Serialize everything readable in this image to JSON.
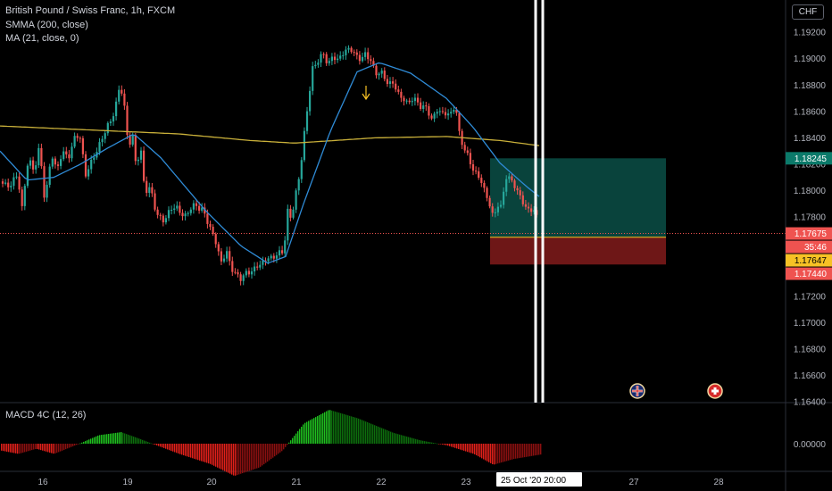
{
  "header": {
    "symbol_line": "British Pound / Swiss Franc, 1h, FXCM",
    "smma_label": "SMMA (200, close)",
    "ma_label": "MA (21, close, 0)",
    "currency": "CHF"
  },
  "macd_label": "MACD 4C (12, 26)",
  "colors": {
    "up": "#26a69a",
    "down": "#ef5350",
    "smma": "#c9b03a",
    "ma": "#2f8bd6",
    "target_zone": "#0b4f47",
    "stop_zone": "#7a1a1a",
    "macd_pos_strong": "#1fbf1f",
    "macd_pos_weak": "#0d6e0d",
    "macd_neg_strong": "#e0201a",
    "macd_neg_weak": "#8a1010"
  },
  "price_tags": [
    {
      "text": "1.18245",
      "bg": "#0b7a6a",
      "fg": "#ffffff"
    },
    {
      "text": "1.17675",
      "bg": "#ef5350",
      "fg": "#ffffff"
    },
    {
      "text": "35:46",
      "bg": "#ef5350",
      "fg": "#ffffff"
    },
    {
      "text": "1.17647",
      "bg": "#f7c125",
      "fg": "#000000"
    },
    {
      "text": "1.17440",
      "bg": "#ef5350",
      "fg": "#ffffff"
    }
  ],
  "macd_axis_label": "0.00000",
  "x_labels": [
    "16",
    "19",
    "20",
    "21",
    "22",
    "23",
    "27",
    "28"
  ],
  "time_tooltip": "25 Oct '20   20:00",
  "event_icons": [
    "flag-gb-icon",
    "flag-ch-icon"
  ],
  "chart_data": {
    "type": "candlestick",
    "title": "British Pound / Swiss Franc, 1h, FXCM",
    "y_ticks": [
      "1.19200",
      "1.19000",
      "1.18800",
      "1.18600",
      "1.18400",
      "1.18200",
      "1.18000",
      "1.17800",
      "1.17200",
      "1.17000",
      "1.16800",
      "1.16600",
      "1.16400"
    ],
    "ylim": [
      1.164,
      1.1935
    ],
    "x_ticks": [
      "16",
      "19",
      "20",
      "21",
      "22",
      "23",
      "27",
      "28"
    ],
    "last_price": 1.17675,
    "trade": {
      "target": 1.18245,
      "entry": 1.17647,
      "stop": 1.1744
    },
    "candle_control_points": [
      [
        0,
        1.1807
      ],
      [
        10,
        1.1803
      ],
      [
        20,
        1.1812
      ],
      [
        25,
        1.1785
      ],
      [
        32,
        1.1828
      ],
      [
        38,
        1.1812
      ],
      [
        44,
        1.1835
      ],
      [
        50,
        1.1792
      ],
      [
        58,
        1.1828
      ],
      [
        64,
        1.1814
      ],
      [
        70,
        1.1832
      ],
      [
        76,
        1.1822
      ],
      [
        82,
        1.1839
      ],
      [
        90,
        1.1841
      ],
      [
        96,
        1.1811
      ],
      [
        102,
        1.1822
      ],
      [
        110,
        1.1832
      ],
      [
        118,
        1.1846
      ],
      [
        124,
        1.1852
      ],
      [
        130,
        1.1866
      ],
      [
        135,
        1.188
      ],
      [
        140,
        1.1862
      ],
      [
        144,
        1.1829
      ],
      [
        148,
        1.1846
      ],
      [
        152,
        1.1821
      ],
      [
        158,
        1.1829
      ],
      [
        162,
        1.18
      ],
      [
        168,
        1.1802
      ],
      [
        175,
        1.1784
      ],
      [
        182,
        1.1776
      ],
      [
        190,
        1.1785
      ],
      [
        198,
        1.1788
      ],
      [
        206,
        1.1779
      ],
      [
        212,
        1.1786
      ],
      [
        220,
        1.1789
      ],
      [
        228,
        1.1784
      ],
      [
        236,
        1.1771
      ],
      [
        242,
        1.176
      ],
      [
        248,
        1.1746
      ],
      [
        254,
        1.1753
      ],
      [
        262,
        1.1737
      ],
      [
        270,
        1.1734
      ],
      [
        278,
        1.1738
      ],
      [
        286,
        1.1741
      ],
      [
        294,
        1.1746
      ],
      [
        302,
        1.1749
      ],
      [
        310,
        1.1751
      ],
      [
        318,
        1.1755
      ],
      [
        322,
        1.1784
      ],
      [
        326,
        1.1779
      ],
      [
        332,
        1.18
      ],
      [
        336,
        1.1812
      ],
      [
        340,
        1.184
      ],
      [
        346,
        1.187
      ],
      [
        350,
        1.1893
      ],
      [
        356,
        1.1898
      ],
      [
        362,
        1.1904
      ],
      [
        368,
        1.1896
      ],
      [
        374,
        1.1902
      ],
      [
        380,
        1.1899
      ],
      [
        388,
        1.1908
      ],
      [
        396,
        1.1905
      ],
      [
        404,
        1.1899
      ],
      [
        410,
        1.1904
      ],
      [
        416,
        1.1898
      ],
      [
        420,
        1.1888
      ],
      [
        426,
        1.1891
      ],
      [
        432,
        1.1883
      ],
      [
        440,
        1.1881
      ],
      [
        448,
        1.1872
      ],
      [
        456,
        1.1866
      ],
      [
        462,
        1.187
      ],
      [
        470,
        1.1865
      ],
      [
        478,
        1.1862
      ],
      [
        484,
        1.1854
      ],
      [
        490,
        1.1861
      ],
      [
        496,
        1.1859
      ],
      [
        504,
        1.1857
      ],
      [
        510,
        1.1866
      ],
      [
        514,
        1.1844
      ],
      [
        518,
        1.1836
      ],
      [
        522,
        1.1829
      ],
      [
        528,
        1.1819
      ],
      [
        534,
        1.1812
      ],
      [
        540,
        1.1806
      ],
      [
        546,
        1.1794
      ],
      [
        552,
        1.1781
      ],
      [
        558,
        1.1789
      ],
      [
        562,
        1.1786
      ],
      [
        566,
        1.1812
      ],
      [
        570,
        1.1809
      ],
      [
        576,
        1.1805
      ],
      [
        582,
        1.1796
      ],
      [
        588,
        1.1788
      ],
      [
        594,
        1.1785
      ],
      [
        600,
        1.1784
      ],
      [
        604,
        1.1776
      ]
    ],
    "smma_points": [
      [
        0,
        1.1849
      ],
      [
        100,
        1.1846
      ],
      [
        200,
        1.1843
      ],
      [
        280,
        1.1838
      ],
      [
        330,
        1.1836
      ],
      [
        420,
        1.184
      ],
      [
        500,
        1.1841
      ],
      [
        560,
        1.1838
      ],
      [
        605,
        1.1834
      ]
    ],
    "ma_points": [
      [
        0,
        1.183
      ],
      [
        30,
        1.1808
      ],
      [
        60,
        1.181
      ],
      [
        90,
        1.182
      ],
      [
        120,
        1.1832
      ],
      [
        150,
        1.1843
      ],
      [
        180,
        1.1825
      ],
      [
        230,
        1.1785
      ],
      [
        270,
        1.1758
      ],
      [
        300,
        1.1745
      ],
      [
        320,
        1.175
      ],
      [
        340,
        1.179
      ],
      [
        370,
        1.1845
      ],
      [
        400,
        1.189
      ],
      [
        425,
        1.1897
      ],
      [
        460,
        1.1889
      ],
      [
        500,
        1.187
      ],
      [
        530,
        1.1848
      ],
      [
        560,
        1.1821
      ],
      [
        590,
        1.1803
      ],
      [
        605,
        1.1795
      ]
    ],
    "macd_points": [
      [
        0,
        -0.2
      ],
      [
        20,
        -0.3
      ],
      [
        40,
        -0.15
      ],
      [
        60,
        -0.3
      ],
      [
        90,
        0.02
      ],
      [
        110,
        0.25
      ],
      [
        135,
        0.34
      ],
      [
        150,
        0.2
      ],
      [
        175,
        -0.05
      ],
      [
        200,
        -0.3
      ],
      [
        235,
        -0.6
      ],
      [
        262,
        -0.95
      ],
      [
        290,
        -0.7
      ],
      [
        316,
        -0.2
      ],
      [
        340,
        0.6
      ],
      [
        368,
        1.0
      ],
      [
        400,
        0.75
      ],
      [
        440,
        0.32
      ],
      [
        470,
        0.1
      ],
      [
        500,
        -0.05
      ],
      [
        530,
        -0.3
      ],
      [
        552,
        -0.62
      ],
      [
        575,
        -0.45
      ],
      [
        605,
        -0.32
      ]
    ]
  }
}
